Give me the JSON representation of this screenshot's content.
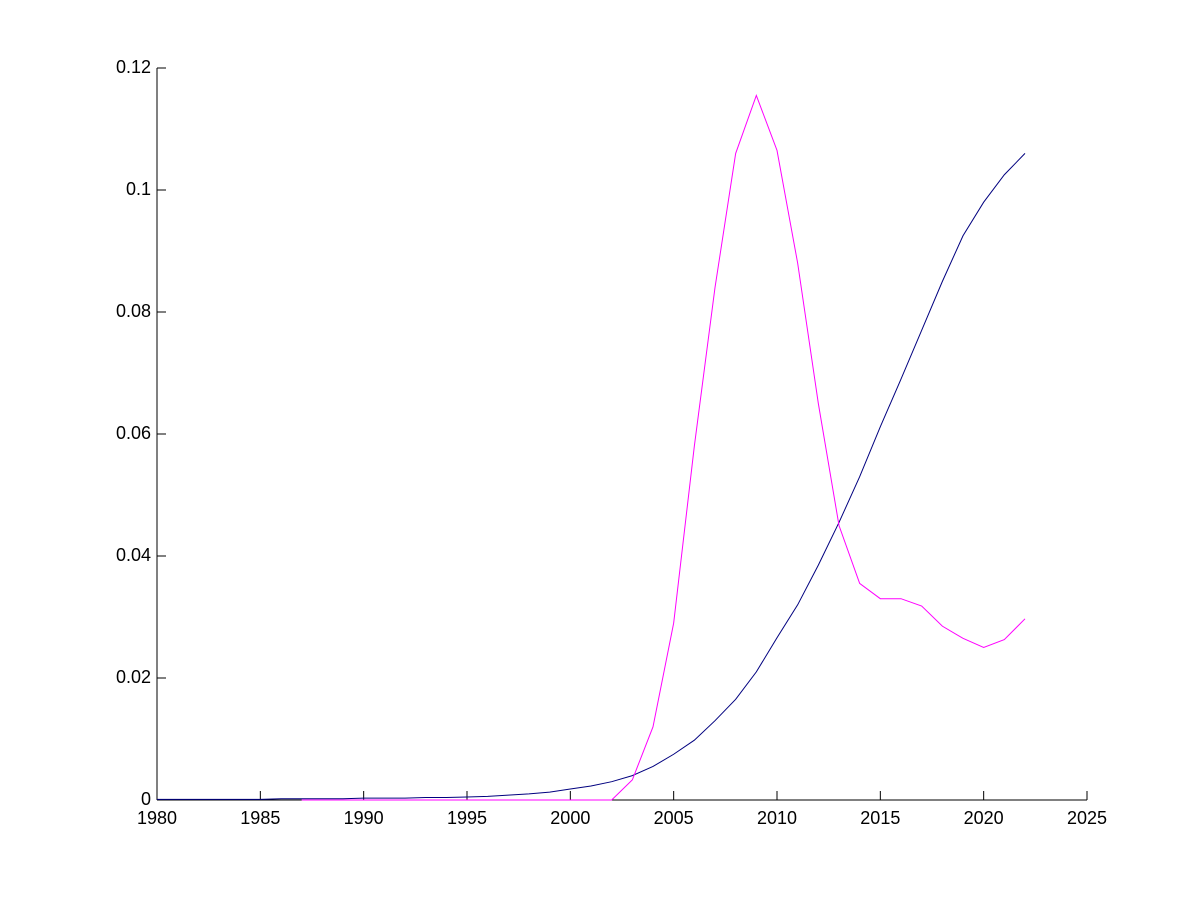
{
  "chart_data": {
    "type": "line",
    "x": [
      1980,
      1981,
      1982,
      1983,
      1984,
      1985,
      1986,
      1987,
      1988,
      1989,
      1990,
      1991,
      1992,
      1993,
      1994,
      1995,
      1996,
      1997,
      1998,
      1999,
      2000,
      2001,
      2002,
      2003,
      2004,
      2005,
      2006,
      2007,
      2008,
      2009,
      2010,
      2011,
      2012,
      2013,
      2014,
      2015,
      2016,
      2017,
      2018,
      2019,
      2020,
      2021,
      2022
    ],
    "series": [
      {
        "color": "#00007f",
        "values": [
          0.0001,
          0.0001,
          0.0001,
          0.0001,
          0.0001,
          0.0001,
          0.0002,
          0.0002,
          0.0002,
          0.0002,
          0.0003,
          0.0003,
          0.0003,
          0.0004,
          0.0004,
          0.0005,
          0.0006,
          0.0008,
          0.001,
          0.0013,
          0.0018,
          0.0023,
          0.003,
          0.004,
          0.0055,
          0.0075,
          0.0098,
          0.013,
          0.0165,
          0.021,
          0.0266,
          0.032,
          0.0385,
          0.0455,
          0.053,
          0.0612,
          0.069,
          0.077,
          0.085,
          0.0925,
          0.098,
          0.1025,
          0.106
        ]
      },
      {
        "color": "#ff00ff",
        "values": [
          null,
          null,
          null,
          null,
          null,
          null,
          null,
          0,
          0,
          0,
          0,
          0,
          0,
          0,
          0,
          0,
          0,
          0,
          0,
          0,
          0,
          0,
          0,
          0.0033,
          0.012,
          0.029,
          0.058,
          0.084,
          0.106,
          0.1155,
          0.1065,
          0.088,
          0.065,
          0.045,
          0.0355,
          0.033,
          0.033,
          0.0318,
          0.0285,
          0.0265,
          0.025,
          0.0263,
          0.0297
        ]
      }
    ],
    "xlim": [
      1980,
      2025
    ],
    "xticks": [
      1980,
      1985,
      1990,
      1995,
      2000,
      2005,
      2010,
      2015,
      2020,
      2025
    ],
    "ylim": [
      0,
      0.12
    ],
    "yticks": [
      0,
      0.02,
      0.04,
      0.06,
      0.08,
      0.1,
      0.12
    ]
  }
}
